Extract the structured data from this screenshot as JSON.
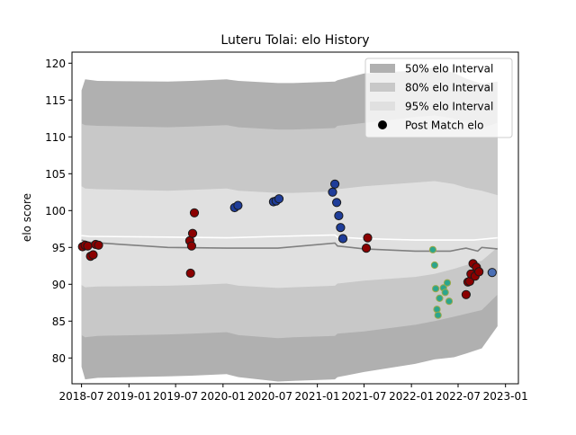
{
  "chart_data": {
    "type": "scatter",
    "title": "Luteru Tolai: elo History",
    "xlabel": "",
    "ylabel": "elo score",
    "xlim": [
      "2018-05-25",
      "2023-02-20"
    ],
    "ylim": [
      76.5,
      121.5
    ],
    "x_ticks": [
      "2018-07",
      "2019-01",
      "2019-07",
      "2020-01",
      "2020-07",
      "2021-01",
      "2021-07",
      "2022-01",
      "2022-07",
      "2023-01"
    ],
    "y_ticks": [
      80,
      85,
      90,
      95,
      100,
      105,
      110,
      115,
      120
    ],
    "grid": false,
    "legend": {
      "position": "top-right",
      "entries": [
        {
          "label": "50% elo Interval",
          "color": "#b0b0b0",
          "kind": "patch"
        },
        {
          "label": "80% elo Interval",
          "color": "#c8c8c8",
          "kind": "patch"
        },
        {
          "label": "95% elo Interval",
          "color": "#e0e0e0",
          "kind": "patch"
        },
        {
          "label": "Post Match elo",
          "color": "#000000",
          "kind": "marker"
        }
      ]
    },
    "bands": {
      "x": [
        "2018-07-01",
        "2018-07-15",
        "2018-09-01",
        "2019-06-01",
        "2019-09-01",
        "2020-01-15",
        "2020-03-01",
        "2020-08-01",
        "2020-10-01",
        "2021-03-10",
        "2021-03-20",
        "2021-07-01",
        "2022-01-15",
        "2022-04-01",
        "2022-06-15",
        "2022-08-01",
        "2022-10-01",
        "2022-12-01"
      ],
      "p95": [
        [
          116.3,
          78.8
        ],
        [
          117.8,
          77.1
        ],
        [
          117.6,
          77.3
        ],
        [
          117.5,
          77.5
        ],
        [
          117.6,
          77.6
        ],
        [
          117.8,
          77.8
        ],
        [
          117.6,
          77.4
        ],
        [
          117.3,
          76.8
        ],
        [
          117.3,
          76.9
        ],
        [
          117.5,
          77.1
        ],
        [
          117.7,
          77.4
        ],
        [
          118.6,
          78.1
        ],
        [
          119.0,
          79.2
        ],
        [
          119.4,
          79.8
        ],
        [
          118.7,
          80.1
        ],
        [
          117.9,
          80.6
        ],
        [
          117.2,
          81.3
        ],
        [
          117.5,
          84.3
        ]
      ],
      "p80": [
        [
          111.8,
          83.1
        ],
        [
          111.6,
          82.8
        ],
        [
          111.5,
          83.0
        ],
        [
          111.3,
          83.2
        ],
        [
          111.4,
          83.3
        ],
        [
          111.6,
          83.5
        ],
        [
          111.3,
          83.1
        ],
        [
          111.0,
          82.7
        ],
        [
          111.0,
          82.8
        ],
        [
          111.2,
          83.0
        ],
        [
          111.5,
          83.3
        ],
        [
          111.9,
          83.6
        ],
        [
          112.7,
          84.5
        ],
        [
          112.9,
          85.0
        ],
        [
          112.5,
          85.6
        ],
        [
          111.9,
          86.0
        ],
        [
          111.2,
          86.5
        ],
        [
          111.9,
          88.6
        ]
      ],
      "p50": [
        [
          103.3,
          89.9
        ],
        [
          103.0,
          89.6
        ],
        [
          102.9,
          89.7
        ],
        [
          102.7,
          89.8
        ],
        [
          102.8,
          89.9
        ],
        [
          103.0,
          90.1
        ],
        [
          102.7,
          89.8
        ],
        [
          102.4,
          89.5
        ],
        [
          102.4,
          89.6
        ],
        [
          102.6,
          89.8
        ],
        [
          102.9,
          90.1
        ],
        [
          103.3,
          90.5
        ],
        [
          103.8,
          91.0
        ],
        [
          104.0,
          91.4
        ],
        [
          103.6,
          92.1
        ],
        [
          103.1,
          92.6
        ],
        [
          102.7,
          93.2
        ],
        [
          102.1,
          95.0
        ]
      ]
    },
    "series": [
      {
        "name": "",
        "style": "line",
        "color": "#808080",
        "points": [
          [
            "2018-07-01",
            96.0
          ],
          [
            "2018-08-01",
            95.7
          ],
          [
            "2019-06-01",
            95.0
          ],
          [
            "2020-01-15",
            94.9
          ],
          [
            "2020-08-01",
            94.9
          ],
          [
            "2021-03-10",
            95.6
          ],
          [
            "2021-03-20",
            95.2
          ],
          [
            "2021-07-01",
            94.8
          ],
          [
            "2022-01-15",
            94.5
          ],
          [
            "2022-06-01",
            94.5
          ],
          [
            "2022-07-15",
            94.8
          ],
          [
            "2022-08-01",
            94.9
          ],
          [
            "2022-09-15",
            94.5
          ],
          [
            "2022-10-01",
            95.0
          ],
          [
            "2022-12-01",
            94.8
          ]
        ]
      },
      {
        "name": "",
        "style": "line",
        "color": "#ffffff",
        "points": [
          [
            "2018-07-01",
            96.6
          ],
          [
            "2018-08-01",
            96.5
          ],
          [
            "2019-06-01",
            96.4
          ],
          [
            "2020-01-15",
            96.3
          ],
          [
            "2020-08-01",
            96.5
          ],
          [
            "2021-03-10",
            96.7
          ],
          [
            "2021-03-20",
            96.4
          ],
          [
            "2021-07-01",
            96.2
          ],
          [
            "2022-01-15",
            96.0
          ],
          [
            "2022-06-01",
            96.0
          ],
          [
            "2022-09-01",
            96.0
          ],
          [
            "2022-12-01",
            96.3
          ]
        ]
      },
      {
        "name": "Post Match elo",
        "style": "scatter",
        "points": [
          {
            "x": "2018-07-05",
            "y": 95.1,
            "color": "#8b0000"
          },
          {
            "x": "2018-07-15",
            "y": 95.3,
            "color": "#8b0000"
          },
          {
            "x": "2018-07-25",
            "y": 95.2,
            "color": "#8b0000"
          },
          {
            "x": "2018-08-05",
            "y": 93.8,
            "color": "#8b0000"
          },
          {
            "x": "2018-08-15",
            "y": 94.0,
            "color": "#8b0000"
          },
          {
            "x": "2018-08-25",
            "y": 95.4,
            "color": "#8b0000"
          },
          {
            "x": "2018-09-05",
            "y": 95.3,
            "color": "#8b0000"
          },
          {
            "x": "2019-08-25",
            "y": 95.9,
            "color": "#8b0000"
          },
          {
            "x": "2019-08-28",
            "y": 91.5,
            "color": "#8b0000"
          },
          {
            "x": "2019-09-01",
            "y": 95.2,
            "color": "#8b0000"
          },
          {
            "x": "2019-09-05",
            "y": 96.9,
            "color": "#8b0000"
          },
          {
            "x": "2019-09-12",
            "y": 99.7,
            "color": "#8b0000"
          },
          {
            "x": "2020-02-15",
            "y": 100.4,
            "color": "#1f3d99"
          },
          {
            "x": "2020-02-28",
            "y": 100.7,
            "color": "#1f3d99"
          },
          {
            "x": "2020-07-15",
            "y": 101.2,
            "color": "#1f3d99"
          },
          {
            "x": "2020-07-25",
            "y": 101.3,
            "color": "#1f3d99"
          },
          {
            "x": "2020-08-05",
            "y": 101.6,
            "color": "#1f3d99"
          },
          {
            "x": "2021-03-01",
            "y": 102.5,
            "color": "#1f3d99"
          },
          {
            "x": "2021-03-10",
            "y": 103.6,
            "color": "#1f3d99"
          },
          {
            "x": "2021-03-17",
            "y": 101.1,
            "color": "#1f3d99"
          },
          {
            "x": "2021-03-25",
            "y": 99.3,
            "color": "#1f3d99"
          },
          {
            "x": "2021-04-01",
            "y": 97.7,
            "color": "#1f3d99"
          },
          {
            "x": "2021-04-10",
            "y": 96.2,
            "color": "#1f3d99"
          },
          {
            "x": "2021-07-10",
            "y": 94.9,
            "color": "#8b0000"
          },
          {
            "x": "2021-07-15",
            "y": 96.3,
            "color": "#8b0000"
          },
          {
            "x": "2022-03-25",
            "y": 94.7,
            "color": "#2ca58d"
          },
          {
            "x": "2022-04-01",
            "y": 92.6,
            "color": "#2ca58d"
          },
          {
            "x": "2022-04-05",
            "y": 89.4,
            "color": "#2ca58d"
          },
          {
            "x": "2022-04-10",
            "y": 86.6,
            "color": "#2ca58d"
          },
          {
            "x": "2022-04-14",
            "y": 85.8,
            "color": "#2ca58d"
          },
          {
            "x": "2022-04-20",
            "y": 88.1,
            "color": "#2ca58d"
          },
          {
            "x": "2022-05-05",
            "y": 89.5,
            "color": "#2ca58d"
          },
          {
            "x": "2022-05-12",
            "y": 88.9,
            "color": "#2ca58d"
          },
          {
            "x": "2022-05-20",
            "y": 90.2,
            "color": "#2ca58d"
          },
          {
            "x": "2022-05-27",
            "y": 87.7,
            "color": "#2ca58d"
          },
          {
            "x": "2022-08-01",
            "y": 88.6,
            "color": "#8b0000"
          },
          {
            "x": "2022-08-08",
            "y": 90.3,
            "color": "#8b0000"
          },
          {
            "x": "2022-08-15",
            "y": 90.4,
            "color": "#8b0000"
          },
          {
            "x": "2022-08-20",
            "y": 91.4,
            "color": "#8b0000"
          },
          {
            "x": "2022-08-28",
            "y": 92.8,
            "color": "#8b0000"
          },
          {
            "x": "2022-09-05",
            "y": 91.1,
            "color": "#8b0000"
          },
          {
            "x": "2022-09-10",
            "y": 92.3,
            "color": "#8b0000"
          },
          {
            "x": "2022-09-20",
            "y": 91.7,
            "color": "#8b0000"
          },
          {
            "x": "2022-11-10",
            "y": 91.6,
            "color": "#4a6fb5"
          }
        ]
      }
    ]
  }
}
